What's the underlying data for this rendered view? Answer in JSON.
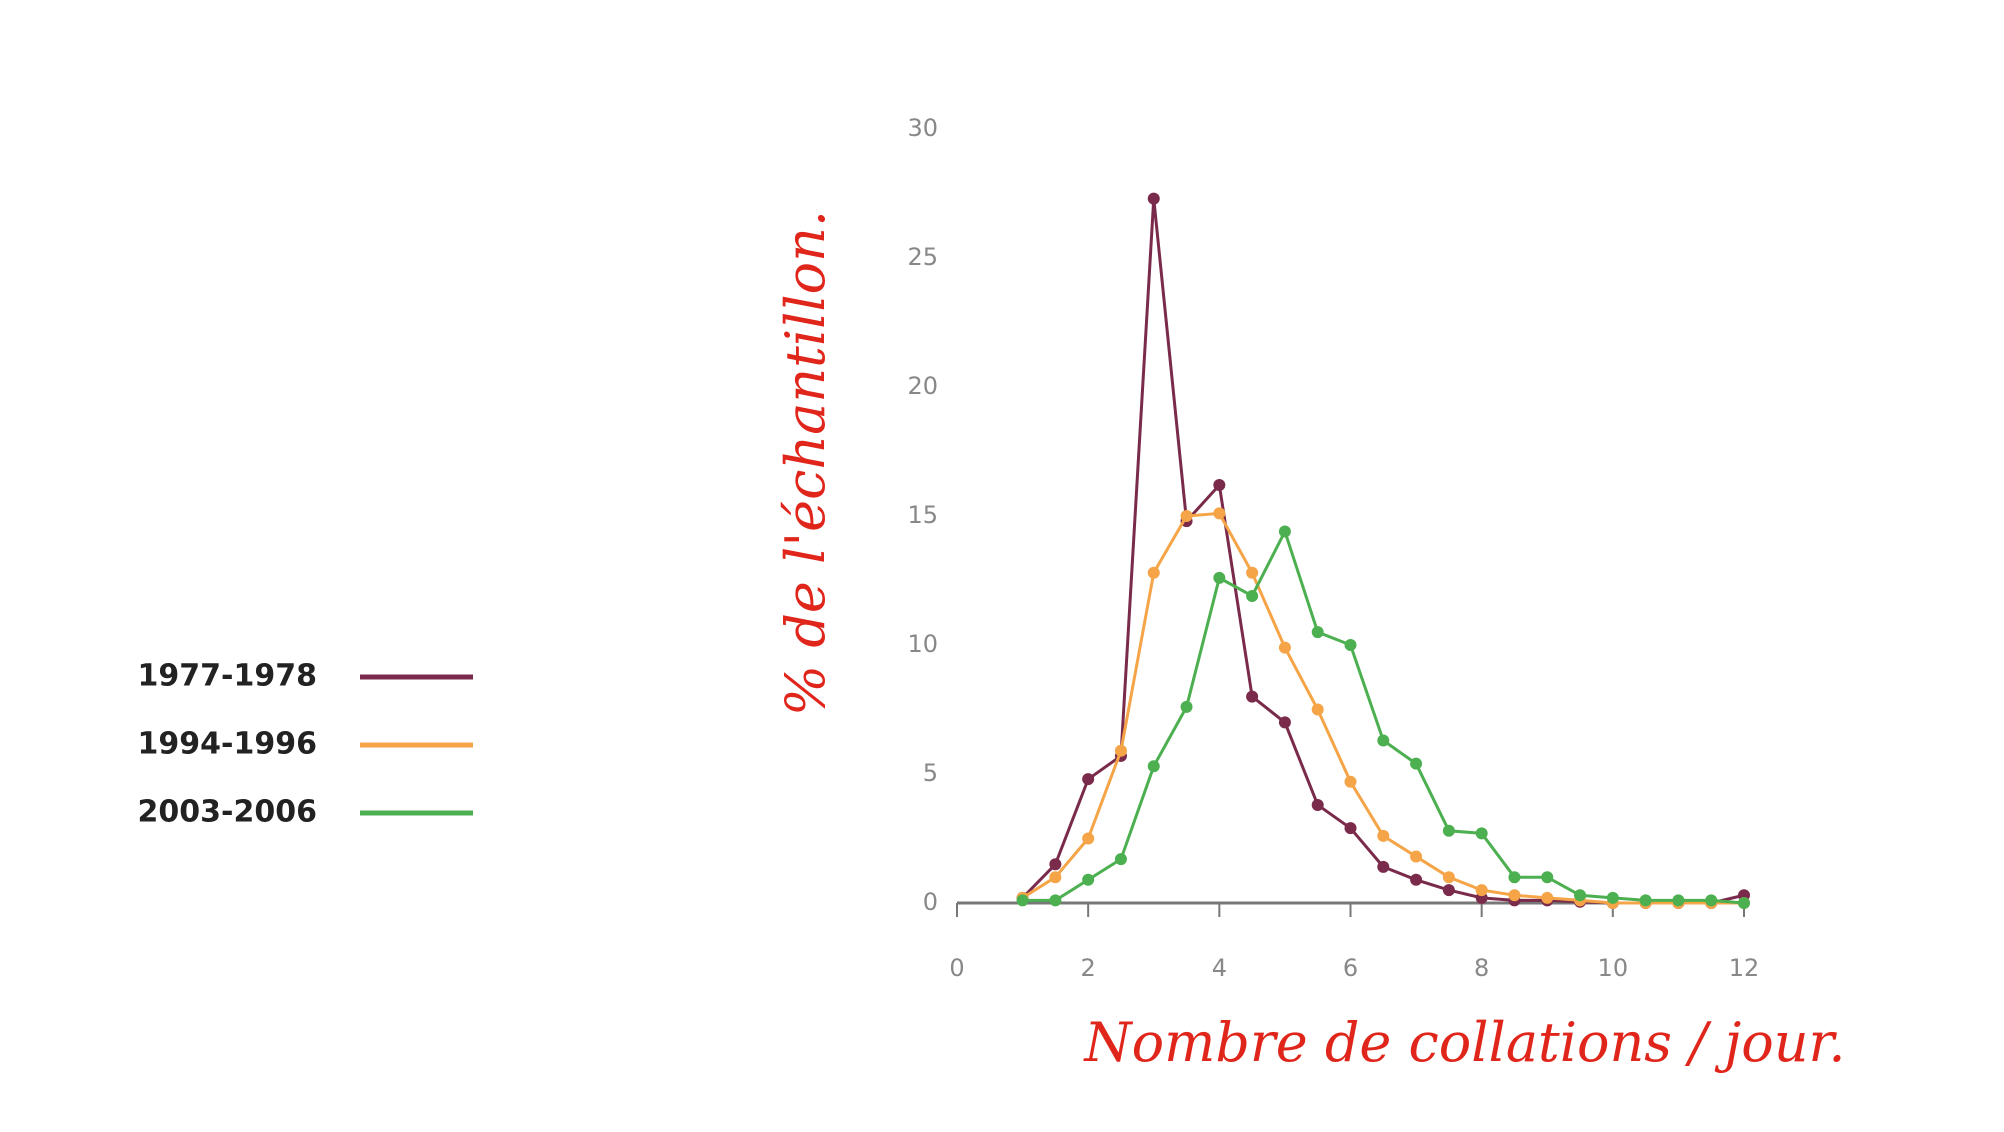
{
  "chart_data": {
    "type": "line",
    "x_label": "Nombre de collations / jour.",
    "y_label": "% de l'échantillon.",
    "x": [
      1,
      1.5,
      2,
      2.5,
      3,
      3.5,
      4,
      4.5,
      5,
      5.5,
      6,
      6.5,
      7,
      7.5,
      8,
      8.5,
      9,
      9.5,
      10,
      10.5,
      11,
      11.5,
      12
    ],
    "series": [
      {
        "name": "1977-1978",
        "color": "#7a2a4a",
        "values": [
          0.2,
          1.5,
          4.8,
          5.7,
          27.3,
          14.8,
          16.2,
          8,
          7,
          3.8,
          2.9,
          1.4,
          0.9,
          0.5,
          0.2,
          0.1,
          0.1,
          0.05,
          0,
          0,
          0,
          0,
          0.3
        ]
      },
      {
        "name": "1994-1996",
        "color": "#f5a447",
        "values": [
          0.2,
          1,
          2.5,
          5.9,
          12.8,
          15,
          15.1,
          12.8,
          9.9,
          7.5,
          4.7,
          2.6,
          1.8,
          1,
          0.5,
          0.3,
          0.2,
          0.1,
          0,
          0,
          0,
          0,
          0
        ]
      },
      {
        "name": "2003-2006",
        "color": "#4caf50",
        "values": [
          0.1,
          0.1,
          0.9,
          1.7,
          5.3,
          7.6,
          12.6,
          11.9,
          14.4,
          10.5,
          10,
          6.3,
          5.4,
          2.8,
          2.7,
          1,
          1,
          0.3,
          0.2,
          0.1,
          0.1,
          0.1,
          0
        ]
      }
    ],
    "xlim": [
      0,
      12
    ],
    "xticks": [
      0,
      2,
      4,
      6,
      8,
      10,
      12
    ],
    "ylim": [
      0,
      30
    ],
    "yticks": [
      0,
      5,
      10,
      15,
      20,
      25,
      30
    ],
    "legend": "left",
    "grid": false
  }
}
